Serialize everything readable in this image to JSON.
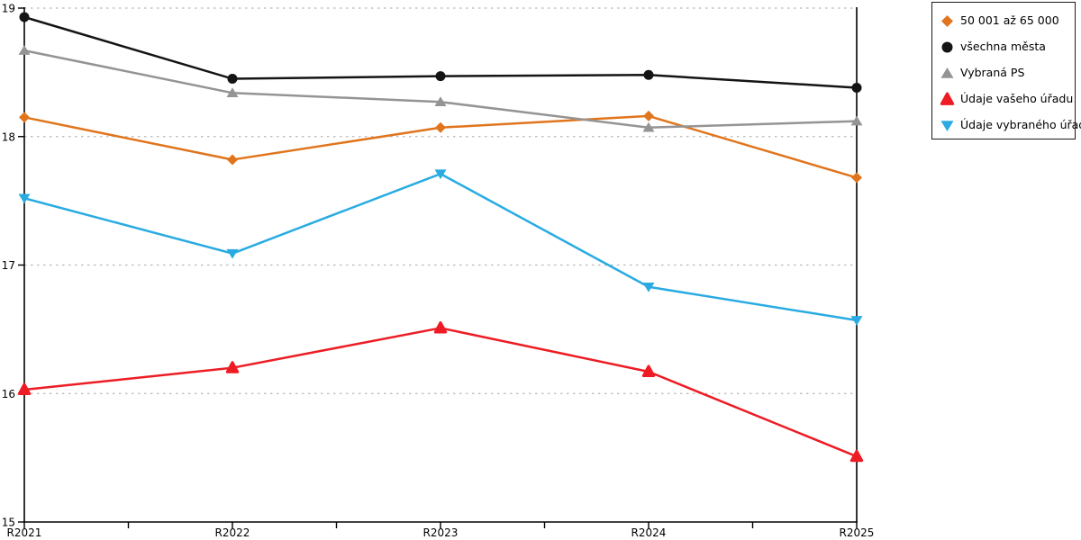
{
  "chart_data": {
    "type": "line",
    "title": "",
    "xlabel": "",
    "ylabel": "",
    "x_categories": [
      "R2021",
      "R2022",
      "R2023",
      "R2024",
      "R2025"
    ],
    "series": [
      {
        "name": "50 001 až 65 000",
        "color": "#E0751D",
        "marker": "diamond",
        "values": [
          18.15,
          17.82,
          18.07,
          18.16,
          17.68
        ]
      },
      {
        "name": "všechna města",
        "color": "#141414",
        "marker": "circle",
        "values": [
          18.93,
          18.45,
          18.47,
          18.48,
          18.38
        ]
      },
      {
        "name": "Vybraná PS",
        "color": "#949494",
        "marker": "triangle-up",
        "values": [
          18.67,
          18.34,
          18.27,
          18.07,
          18.12
        ]
      },
      {
        "name": "Údaje vašeho úřadu",
        "color": "#ED1C24",
        "marker": "triangle-up-rounded",
        "values": [
          16.03,
          16.2,
          16.51,
          16.17,
          15.51
        ]
      },
      {
        "name": "Údaje vybraného úřadu",
        "color": "#29ABE2",
        "marker": "triangle-down",
        "values": [
          17.52,
          17.09,
          17.71,
          16.83,
          16.57
        ]
      }
    ],
    "ylim": [
      15,
      19
    ],
    "yticks": [
      15,
      16,
      17,
      18,
      19
    ],
    "grid": "horizontal-dotted",
    "minor_xticks_at_midpoints": true,
    "legend_position": "outside-top-right"
  },
  "style": {
    "grid_color": "#B8B8B8",
    "axis_color": "#000000",
    "background": "#FFFFFF",
    "legend_border_color": "#1A1A1A"
  }
}
